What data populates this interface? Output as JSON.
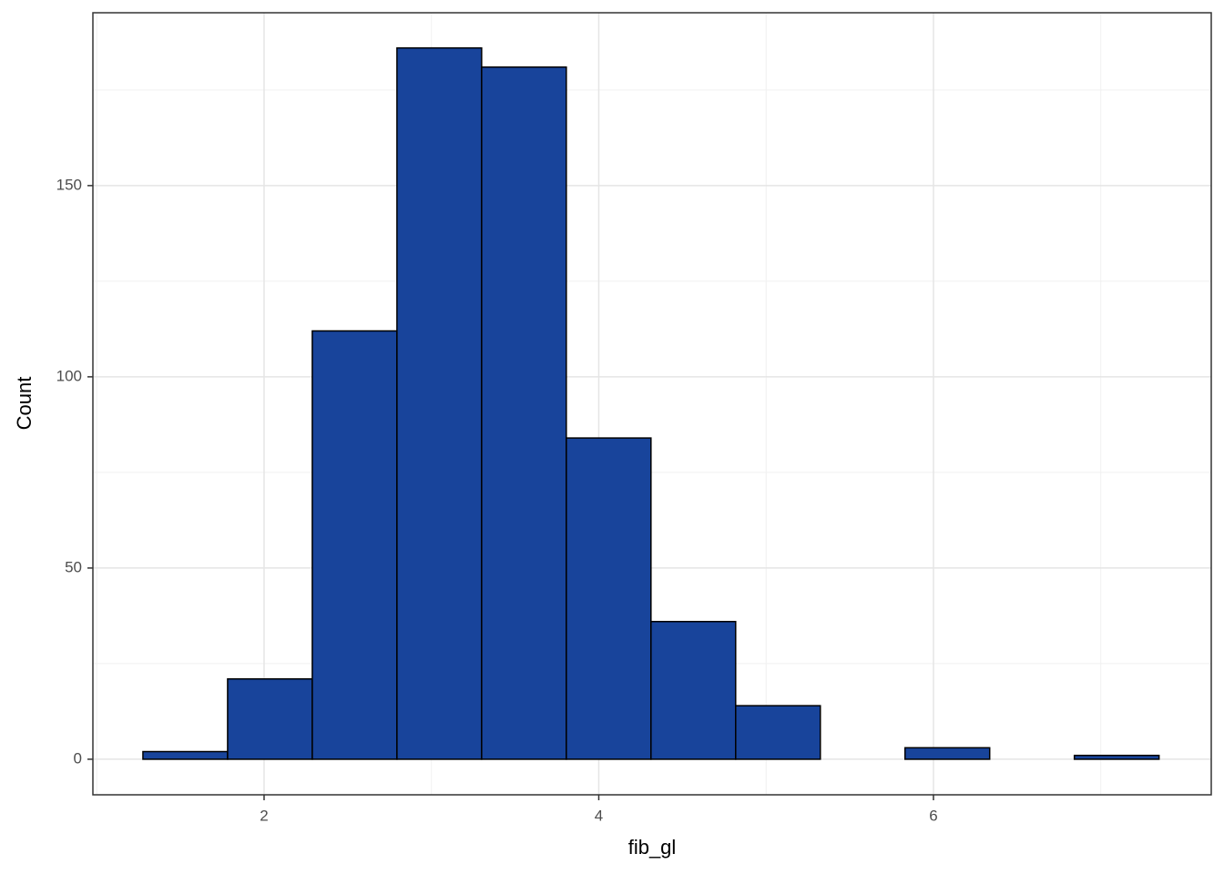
{
  "chart_data": {
    "type": "histogram",
    "xlabel": "fib_gl",
    "ylabel": "Count",
    "bins": [
      1.276,
      1.782,
      2.288,
      2.794,
      3.3,
      3.806,
      4.312,
      4.818,
      5.324,
      5.83,
      6.336,
      6.842,
      7.348
    ],
    "counts": [
      2,
      21,
      112,
      186,
      181,
      84,
      36,
      14,
      0,
      3,
      0,
      1
    ],
    "color": "#18449b",
    "xlim": [
      0.977,
      7.66
    ],
    "ylim": [
      -9.3,
      195.2
    ],
    "xticks": [
      2,
      4,
      6
    ],
    "yticks": [
      0,
      50,
      100,
      150
    ],
    "grid": true
  }
}
